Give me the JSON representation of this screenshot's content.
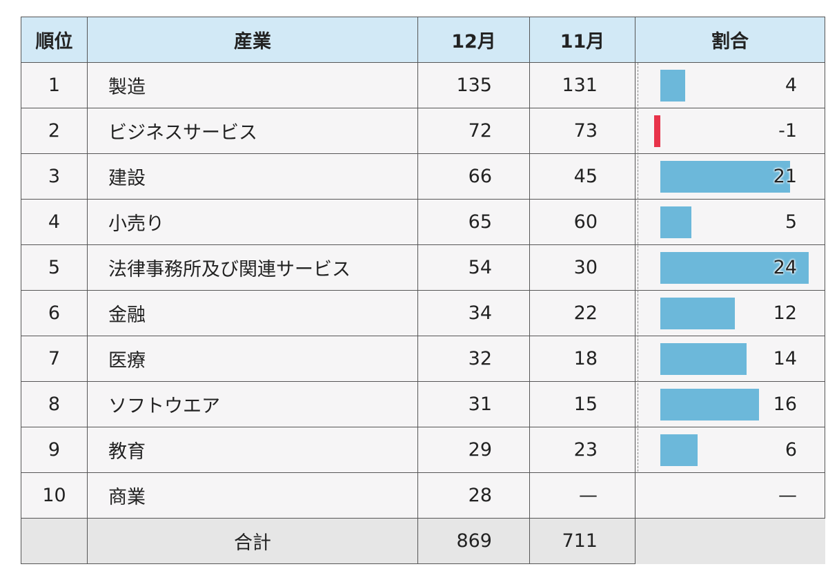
{
  "headers": {
    "rank": "順位",
    "industry": "産業",
    "dec": "12月",
    "nov": "11月",
    "ratio": "割合"
  },
  "rows": [
    {
      "rank": "1",
      "industry": "製造",
      "dec": "135",
      "nov": "131",
      "ratio": "4"
    },
    {
      "rank": "2",
      "industry": "ビジネスサービス",
      "dec": "72",
      "nov": "73",
      "ratio": "-1"
    },
    {
      "rank": "3",
      "industry": "建設",
      "dec": "66",
      "nov": "45",
      "ratio": "21"
    },
    {
      "rank": "4",
      "industry": "小売り",
      "dec": "65",
      "nov": "60",
      "ratio": "5"
    },
    {
      "rank": "5",
      "industry": "法律事務所及び関連サービス",
      "dec": "54",
      "nov": "30",
      "ratio": "24"
    },
    {
      "rank": "6",
      "industry": "金融",
      "dec": "34",
      "nov": "22",
      "ratio": "12"
    },
    {
      "rank": "7",
      "industry": "医療",
      "dec": "32",
      "nov": "18",
      "ratio": "14"
    },
    {
      "rank": "8",
      "industry": "ソフトウエア",
      "dec": "31",
      "nov": "15",
      "ratio": "16"
    },
    {
      "rank": "9",
      "industry": "教育",
      "dec": "29",
      "nov": "23",
      "ratio": "6"
    },
    {
      "rank": "10",
      "industry": "商業",
      "dec": "28",
      "nov": "—",
      "ratio": "—"
    }
  ],
  "total": {
    "label": "合計",
    "dec": "869",
    "nov": "711"
  },
  "colors": {
    "positive_bar": "#6cb8da",
    "negative_bar": "#e8334a",
    "header_bg": "#d2e9f6"
  },
  "ratio_scale_max": 24
}
